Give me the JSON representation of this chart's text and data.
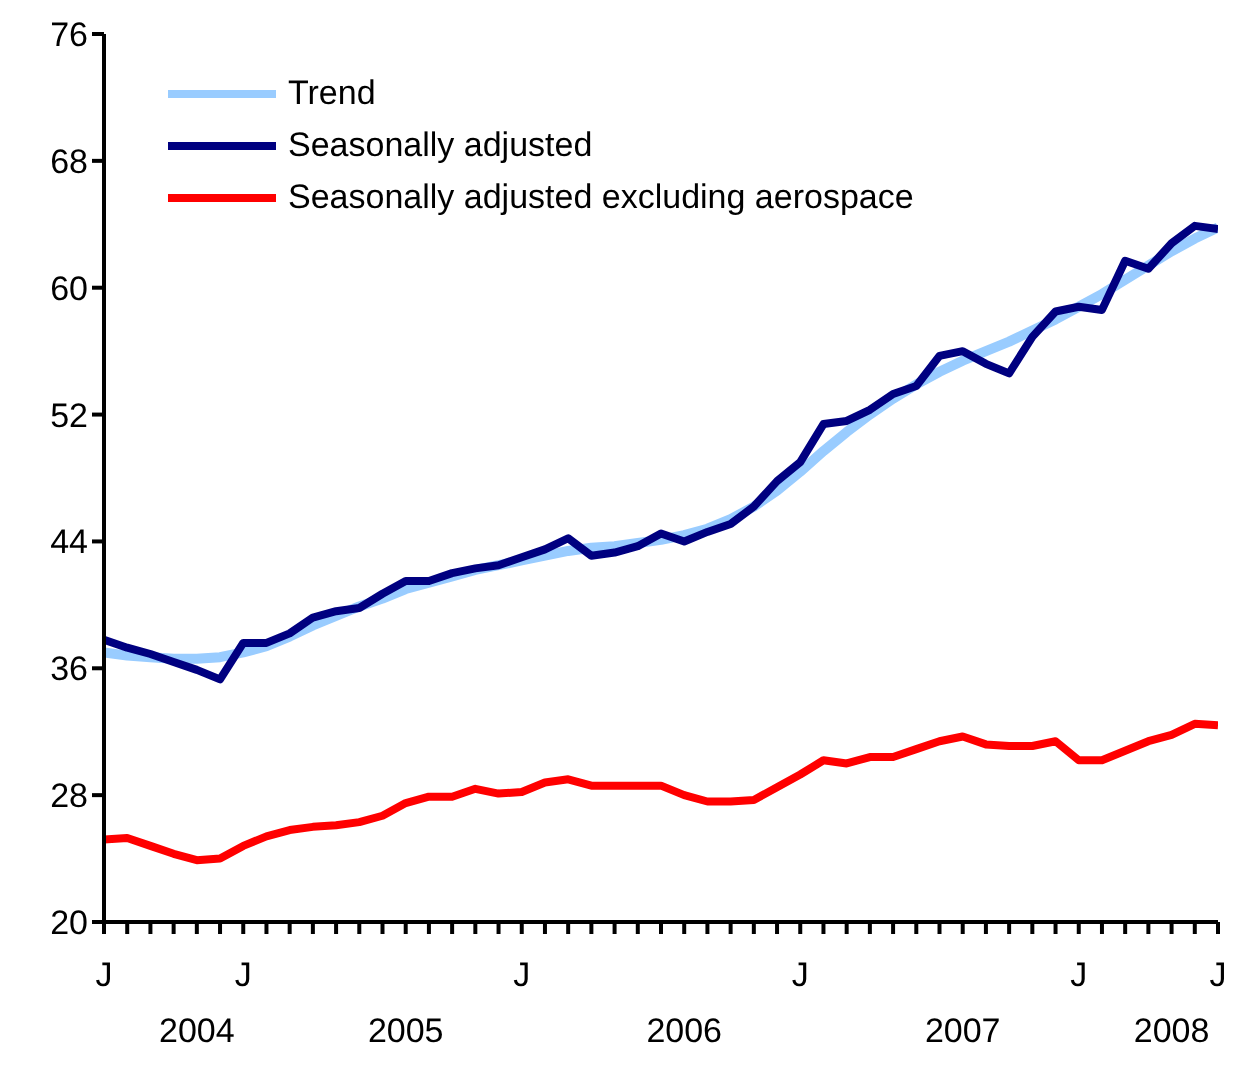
{
  "chart_data": {
    "type": "line",
    "categories": [
      "J",
      null,
      null,
      null,
      null,
      null,
      "J",
      null,
      null,
      null,
      null,
      null,
      null,
      null,
      null,
      null,
      null,
      null,
      "J",
      null,
      null,
      null,
      null,
      null,
      null,
      null,
      null,
      null,
      null,
      null,
      "J",
      null,
      null,
      null,
      null,
      null,
      null,
      null,
      null,
      null,
      null,
      null,
      "J",
      null,
      null,
      null,
      null,
      null,
      "J"
    ],
    "series": [
      {
        "name": "Trend",
        "color": "#99ccff",
        "values": [
          37.0,
          36.8,
          36.7,
          36.6,
          36.6,
          36.7,
          37.0,
          37.4,
          38.0,
          38.7,
          39.3,
          39.9,
          40.4,
          41.0,
          41.4,
          41.8,
          42.2,
          42.5,
          42.8,
          43.1,
          43.4,
          43.6,
          43.7,
          43.9,
          44.1,
          44.4,
          44.8,
          45.4,
          46.2,
          47.2,
          48.4,
          49.7,
          50.9,
          52.0,
          53.0,
          53.9,
          54.7,
          55.4,
          56.0,
          56.6,
          57.3,
          58.0,
          58.8,
          59.6,
          60.5,
          61.4,
          62.3,
          63.1,
          63.8
        ]
      },
      {
        "name": "Seasonally adjusted",
        "color": "#000080",
        "values": [
          37.8,
          37.3,
          36.9,
          36.4,
          35.9,
          35.3,
          37.6,
          37.6,
          38.2,
          39.2,
          39.6,
          39.8,
          40.7,
          41.5,
          41.5,
          42.0,
          42.3,
          42.5,
          43.0,
          43.5,
          44.2,
          43.1,
          43.3,
          43.7,
          44.5,
          44.0,
          44.6,
          45.1,
          46.2,
          47.8,
          49.0,
          51.4,
          51.6,
          52.3,
          53.3,
          53.8,
          55.7,
          56.0,
          55.2,
          54.6,
          56.9,
          58.5,
          58.8,
          58.6,
          61.7,
          61.2,
          62.8,
          63.9,
          63.7
        ]
      },
      {
        "name": "Seasonally adjusted excluding aerospace",
        "color": "#ff0000",
        "values": [
          25.2,
          25.3,
          24.8,
          24.3,
          23.9,
          24.0,
          24.8,
          25.4,
          25.8,
          26.0,
          26.1,
          26.3,
          26.7,
          27.5,
          27.9,
          27.9,
          28.4,
          28.1,
          28.2,
          28.8,
          29.0,
          28.6,
          28.6,
          28.6,
          28.6,
          28.0,
          27.6,
          27.6,
          27.7,
          28.5,
          29.3,
          30.2,
          30.0,
          30.4,
          30.4,
          30.9,
          31.4,
          31.7,
          31.2,
          31.1,
          31.1,
          31.4,
          30.2,
          30.2,
          30.8,
          31.4,
          31.8,
          32.5,
          32.4
        ]
      }
    ],
    "x2lim": [
      "2004-07",
      "2008-07"
    ],
    "x2ticks": [
      {
        "value": "2004-11",
        "label": "2004"
      },
      {
        "value": "2005-08",
        "label": "2005"
      },
      {
        "value": "2006-08",
        "label": "2006"
      },
      {
        "value": "2007-08",
        "label": "2007"
      },
      {
        "value": "2008-05",
        "label": "2008"
      }
    ],
    "ylim": [
      20,
      76
    ],
    "yticks": [
      20,
      28,
      36,
      44,
      52,
      60,
      68,
      76
    ],
    "legend": "top left",
    "marker": "none",
    "line_style": "solid"
  }
}
